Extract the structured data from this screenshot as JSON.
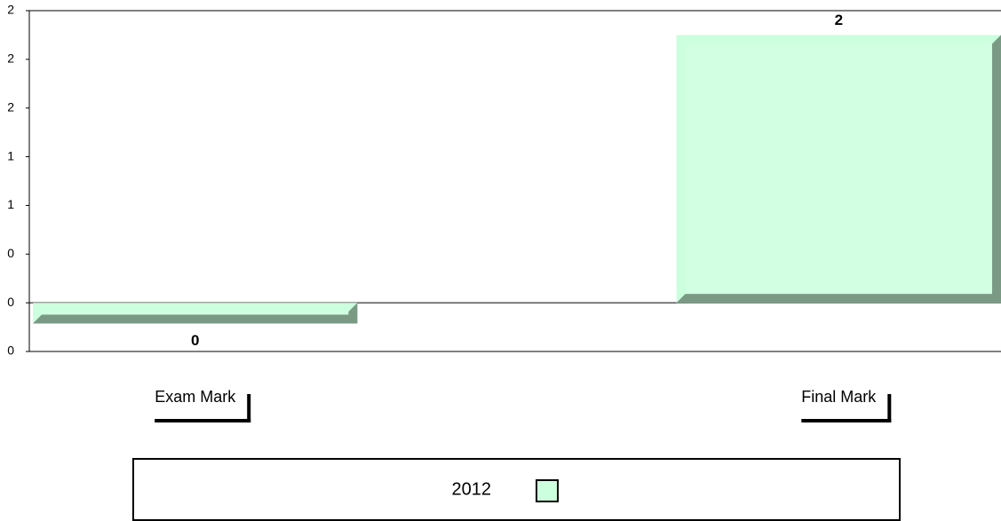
{
  "chart_data": {
    "type": "bar",
    "categories": [
      "Exam Mark",
      "Final Mark"
    ],
    "series": [
      {
        "name": "2012",
        "color": "#ccffdd",
        "values": [
          -0.17,
          2.2
        ],
        "value_labels": [
          "0",
          "2"
        ]
      }
    ],
    "ylim": [
      -0.4,
      2.4
    ],
    "yticks": [
      {
        "value": -0.4,
        "label": "0"
      },
      {
        "value": 0,
        "label": "0"
      },
      {
        "value": 0.4,
        "label": "0"
      },
      {
        "value": 0.8,
        "label": "1"
      },
      {
        "value": 1.2,
        "label": "1"
      },
      {
        "value": 1.6,
        "label": "2"
      },
      {
        "value": 2.0,
        "label": "2"
      },
      {
        "value": 2.4,
        "label": "2"
      }
    ],
    "grid": false
  }
}
